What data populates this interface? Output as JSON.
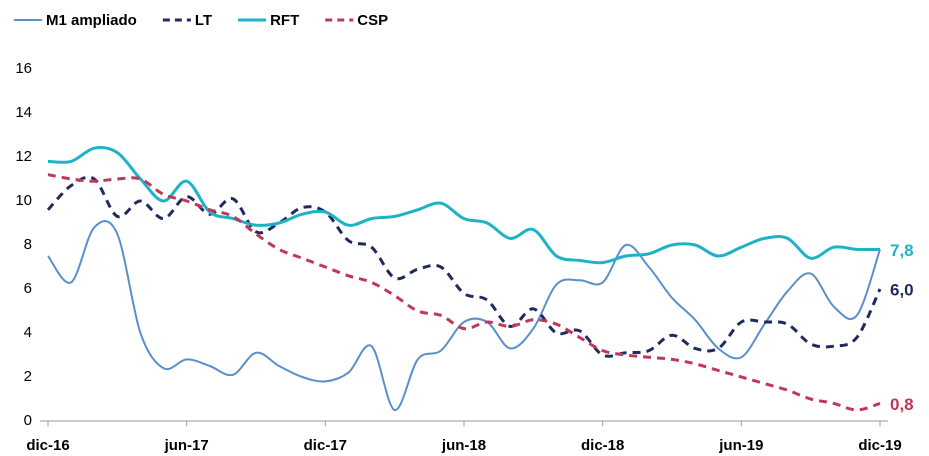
{
  "chart_data": {
    "type": "line",
    "categories": [
      "dic-16",
      null,
      null,
      null,
      null,
      null,
      "jun-17",
      null,
      null,
      null,
      null,
      null,
      "dic-17",
      null,
      null,
      null,
      null,
      null,
      "jun-18",
      null,
      null,
      null,
      null,
      null,
      "dic-18",
      null,
      null,
      null,
      null,
      null,
      "jun-19",
      null,
      null,
      null,
      null,
      null,
      "dic-19"
    ],
    "ylim": [
      0,
      16
    ],
    "yticks": [
      0,
      2,
      4,
      6,
      8,
      10,
      12,
      14,
      16
    ],
    "grid": false,
    "legend": "top",
    "series": [
      {
        "name": "M1 ampliado",
        "color": "#5b8fc9",
        "dash": false,
        "width": 2,
        "values": [
          7.5,
          6.3,
          8.8,
          8.5,
          4.0,
          2.4,
          2.8,
          2.5,
          2.1,
          3.1,
          2.5,
          2.0,
          1.8,
          2.2,
          3.4,
          0.5,
          2.8,
          3.2,
          4.5,
          4.5,
          3.3,
          4.2,
          6.2,
          6.4,
          6.3,
          8.0,
          7.0,
          5.6,
          4.6,
          3.3,
          2.9,
          4.4,
          5.9,
          6.7,
          5.2,
          4.8,
          7.8
        ]
      },
      {
        "name": "LT",
        "color": "#1f2a5e",
        "dash": true,
        "width": 3,
        "values": [
          9.6,
          10.7,
          11.0,
          9.3,
          10.0,
          9.2,
          10.2,
          9.4,
          10.1,
          8.6,
          9.0,
          9.7,
          9.5,
          8.2,
          7.9,
          6.5,
          6.9,
          7.0,
          5.8,
          5.5,
          4.3,
          5.1,
          4.0,
          4.1,
          3.0,
          3.1,
          3.2,
          3.9,
          3.3,
          3.3,
          4.5,
          4.5,
          4.4,
          3.5,
          3.4,
          3.8,
          6.0
        ],
        "value_labels": [
          null,
          null,
          null,
          null,
          null,
          null,
          null,
          null,
          null,
          null,
          null,
          null,
          null,
          null,
          null,
          null,
          null,
          null,
          null,
          null,
          null,
          null,
          null,
          null,
          null,
          null,
          null,
          null,
          null,
          null,
          null,
          null,
          null,
          null,
          null,
          null,
          "6,0"
        ]
      },
      {
        "name": "RFT",
        "color": "#1fb2c6",
        "dash": false,
        "width": 3,
        "values": [
          11.8,
          11.8,
          12.4,
          12.2,
          11.0,
          10.0,
          10.9,
          9.5,
          9.2,
          8.9,
          9.0,
          9.4,
          9.5,
          8.9,
          9.2,
          9.3,
          9.6,
          9.9,
          9.2,
          9.0,
          8.3,
          8.7,
          7.5,
          7.3,
          7.2,
          7.5,
          7.6,
          8.0,
          8.0,
          7.5,
          7.9,
          8.3,
          8.3,
          7.4,
          7.9,
          7.8,
          7.8
        ],
        "value_labels": [
          null,
          null,
          null,
          null,
          null,
          null,
          null,
          null,
          null,
          null,
          null,
          null,
          null,
          null,
          null,
          null,
          null,
          null,
          null,
          null,
          null,
          null,
          null,
          null,
          null,
          null,
          null,
          null,
          null,
          null,
          null,
          null,
          null,
          null,
          null,
          null,
          "7,8"
        ]
      },
      {
        "name": "CSP",
        "color": "#c0375a",
        "dash": true,
        "width": 3,
        "values": [
          11.2,
          11.0,
          10.9,
          11.0,
          11.0,
          10.3,
          10.0,
          9.6,
          9.3,
          8.5,
          7.8,
          7.4,
          7.0,
          6.6,
          6.3,
          5.7,
          5.0,
          4.8,
          4.2,
          4.5,
          4.3,
          4.6,
          4.4,
          3.8,
          3.2,
          3.0,
          2.9,
          2.8,
          2.6,
          2.3,
          2.0,
          1.7,
          1.4,
          1.0,
          0.8,
          0.5,
          0.8
        ],
        "value_labels": [
          null,
          null,
          null,
          null,
          null,
          null,
          null,
          null,
          null,
          null,
          null,
          null,
          null,
          null,
          null,
          null,
          null,
          null,
          null,
          null,
          null,
          null,
          null,
          null,
          null,
          null,
          null,
          null,
          null,
          null,
          null,
          null,
          null,
          null,
          null,
          null,
          "0,8"
        ]
      }
    ]
  }
}
